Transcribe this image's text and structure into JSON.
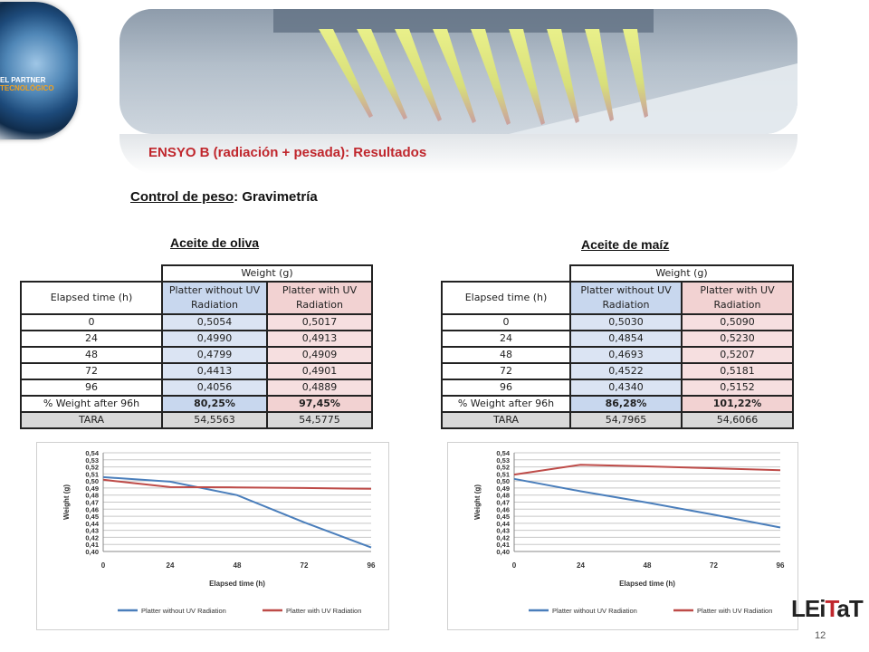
{
  "logo": {
    "line1": "EL PARTNER",
    "line2": "TECNOLÓGICO"
  },
  "banner": {
    "image": "laboratory-pipettes-photo"
  },
  "section_title": "ENSYO B (radiación + pesada): Resultados",
  "subtitle": {
    "underlined": "Control de peso",
    "rest": ": Gravimetría"
  },
  "tables": [
    {
      "title": "Aceite de oliva",
      "group_header": "Weight (g)",
      "col_time": "Elapsed time (h)",
      "col_a": "Platter without UV Radiation",
      "col_b": "Platter with UV Radiation",
      "rows": [
        {
          "t": "0",
          "a": "0,5054",
          "b": "0,5017"
        },
        {
          "t": "24",
          "a": "0,4990",
          "b": "0,4913"
        },
        {
          "t": "48",
          "a": "0,4799",
          "b": "0,4909"
        },
        {
          "t": "72",
          "a": "0,4413",
          "b": "0,4901"
        },
        {
          "t": "96",
          "a": "0,4056",
          "b": "0,4889"
        }
      ],
      "pct_row": {
        "t": "% Weight after 96h",
        "a": "80,25%",
        "b": "97,45%"
      },
      "tara_row": {
        "t": "TARA",
        "a": "54,5563",
        "b": "54,5775"
      }
    },
    {
      "title": "Aceite de maíz",
      "group_header": "Weight (g)",
      "col_time": "Elapsed time (h)",
      "col_a": "Platter without UV Radiation",
      "col_b": "Platter with UV Radiation",
      "rows": [
        {
          "t": "0",
          "a": "0,5030",
          "b": "0,5090"
        },
        {
          "t": "24",
          "a": "0,4854",
          "b": "0,5230"
        },
        {
          "t": "48",
          "a": "0,4693",
          "b": "0,5207"
        },
        {
          "t": "72",
          "a": "0,4522",
          "b": "0,5181"
        },
        {
          "t": "96",
          "a": "0,4340",
          "b": "0,5152"
        }
      ],
      "pct_row": {
        "t": "% Weight after 96h",
        "a": "86,28%",
        "b": "101,22%"
      },
      "tara_row": {
        "t": "TARA",
        "a": "54,7965",
        "b": "54,6066"
      }
    }
  ],
  "chart_data": [
    {
      "type": "line",
      "title": "",
      "xlabel": "Elapsed time (h)",
      "ylabel": "Weight (g)",
      "x": [
        0,
        24,
        48,
        72,
        96
      ],
      "xlim": [
        0,
        96
      ],
      "ylim": [
        0.4,
        0.54
      ],
      "y_ticks": [
        "0,54",
        "0,53",
        "0,52",
        "0,51",
        "0,50",
        "0,49",
        "0,48",
        "0,47",
        "0,46",
        "0,45",
        "0,44",
        "0,43",
        "0,42",
        "0,41",
        "0,40"
      ],
      "x_ticks": [
        "0",
        "24",
        "48",
        "72",
        "96"
      ],
      "grid": true,
      "legend_position": "bottom",
      "series": [
        {
          "name": "Platter without UV Radiation",
          "color": "#4a7ebb",
          "values": [
            0.5054,
            0.499,
            0.4799,
            0.4413,
            0.4056
          ]
        },
        {
          "name": "Platter with UV Radiation",
          "color": "#be4b48",
          "values": [
            0.5017,
            0.4913,
            0.4909,
            0.4901,
            0.4889
          ]
        }
      ]
    },
    {
      "type": "line",
      "title": "",
      "xlabel": "Elapsed time (h)",
      "ylabel": "Weight (g)",
      "x": [
        0,
        24,
        48,
        72,
        96
      ],
      "xlim": [
        0,
        96
      ],
      "ylim": [
        0.4,
        0.54
      ],
      "y_ticks": [
        "0,54",
        "0,53",
        "0,52",
        "0,51",
        "0,50",
        "0,49",
        "0,48",
        "0,47",
        "0,46",
        "0,45",
        "0,44",
        "0,43",
        "0,42",
        "0,41",
        "0,40"
      ],
      "x_ticks": [
        "0",
        "24",
        "48",
        "72",
        "96"
      ],
      "grid": true,
      "legend_position": "bottom",
      "series": [
        {
          "name": "Platter without UV Radiation",
          "color": "#4a7ebb",
          "values": [
            0.503,
            0.4854,
            0.4693,
            0.4522,
            0.434
          ]
        },
        {
          "name": "Platter with UV Radiation",
          "color": "#be4b48",
          "values": [
            0.509,
            0.523,
            0.5207,
            0.5181,
            0.5152
          ]
        }
      ]
    }
  ],
  "footer": {
    "brand_a": "LEi",
    "brand_b": "T",
    "brand_c": "aT",
    "page_number": "12"
  }
}
